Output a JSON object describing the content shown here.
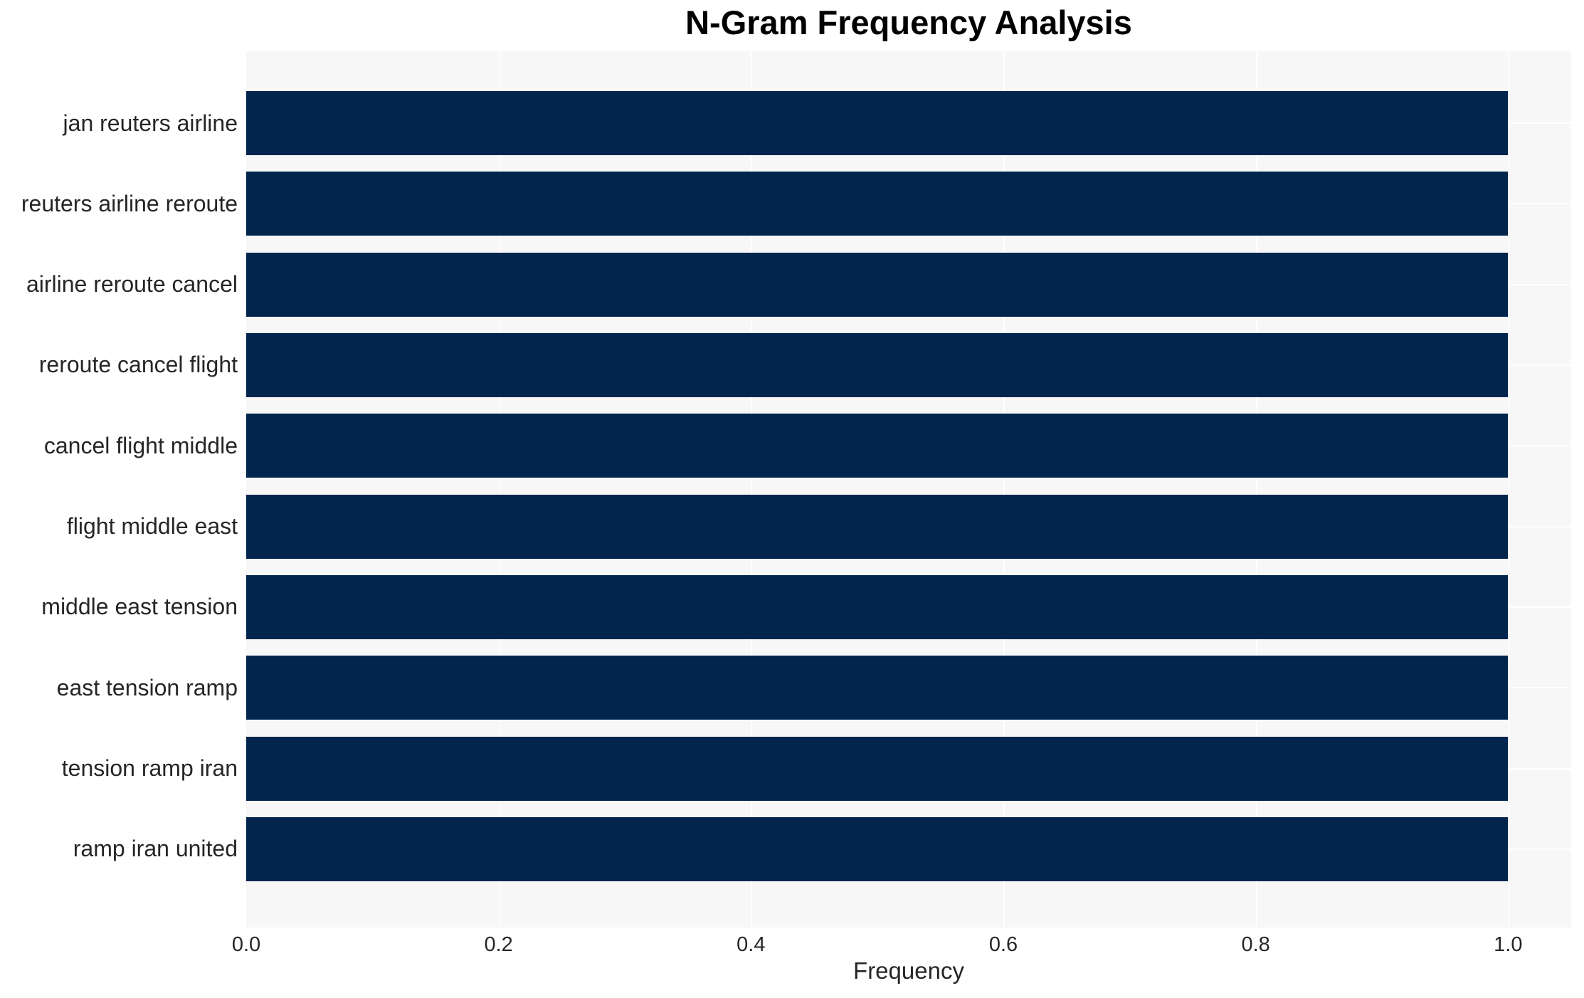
{
  "chart_data": {
    "type": "bar",
    "orientation": "horizontal",
    "title": "N-Gram Frequency Analysis",
    "xlabel": "Frequency",
    "ylabel": "",
    "categories": [
      "jan reuters airline",
      "reuters airline reroute",
      "airline reroute cancel",
      "reroute cancel flight",
      "cancel flight middle",
      "flight middle east",
      "middle east tension",
      "east tension ramp",
      "tension ramp iran",
      "ramp iran united"
    ],
    "values": [
      1.0,
      1.0,
      1.0,
      1.0,
      1.0,
      1.0,
      1.0,
      1.0,
      1.0,
      1.0
    ],
    "xticks": [
      0.0,
      0.2,
      0.4,
      0.6,
      0.8,
      1.0
    ],
    "xtick_labels": [
      "0.0",
      "0.2",
      "0.4",
      "0.6",
      "0.8",
      "1.0"
    ],
    "xlim": [
      0,
      1.05
    ],
    "grid": true,
    "legend": false,
    "colors": {
      "bar": "#02254d",
      "plot_background": "#f7f7f8",
      "gridline": "#ffffff",
      "tick_text": "#262626",
      "title_text": "#000000",
      "figure_background": "#ffffff"
    }
  }
}
